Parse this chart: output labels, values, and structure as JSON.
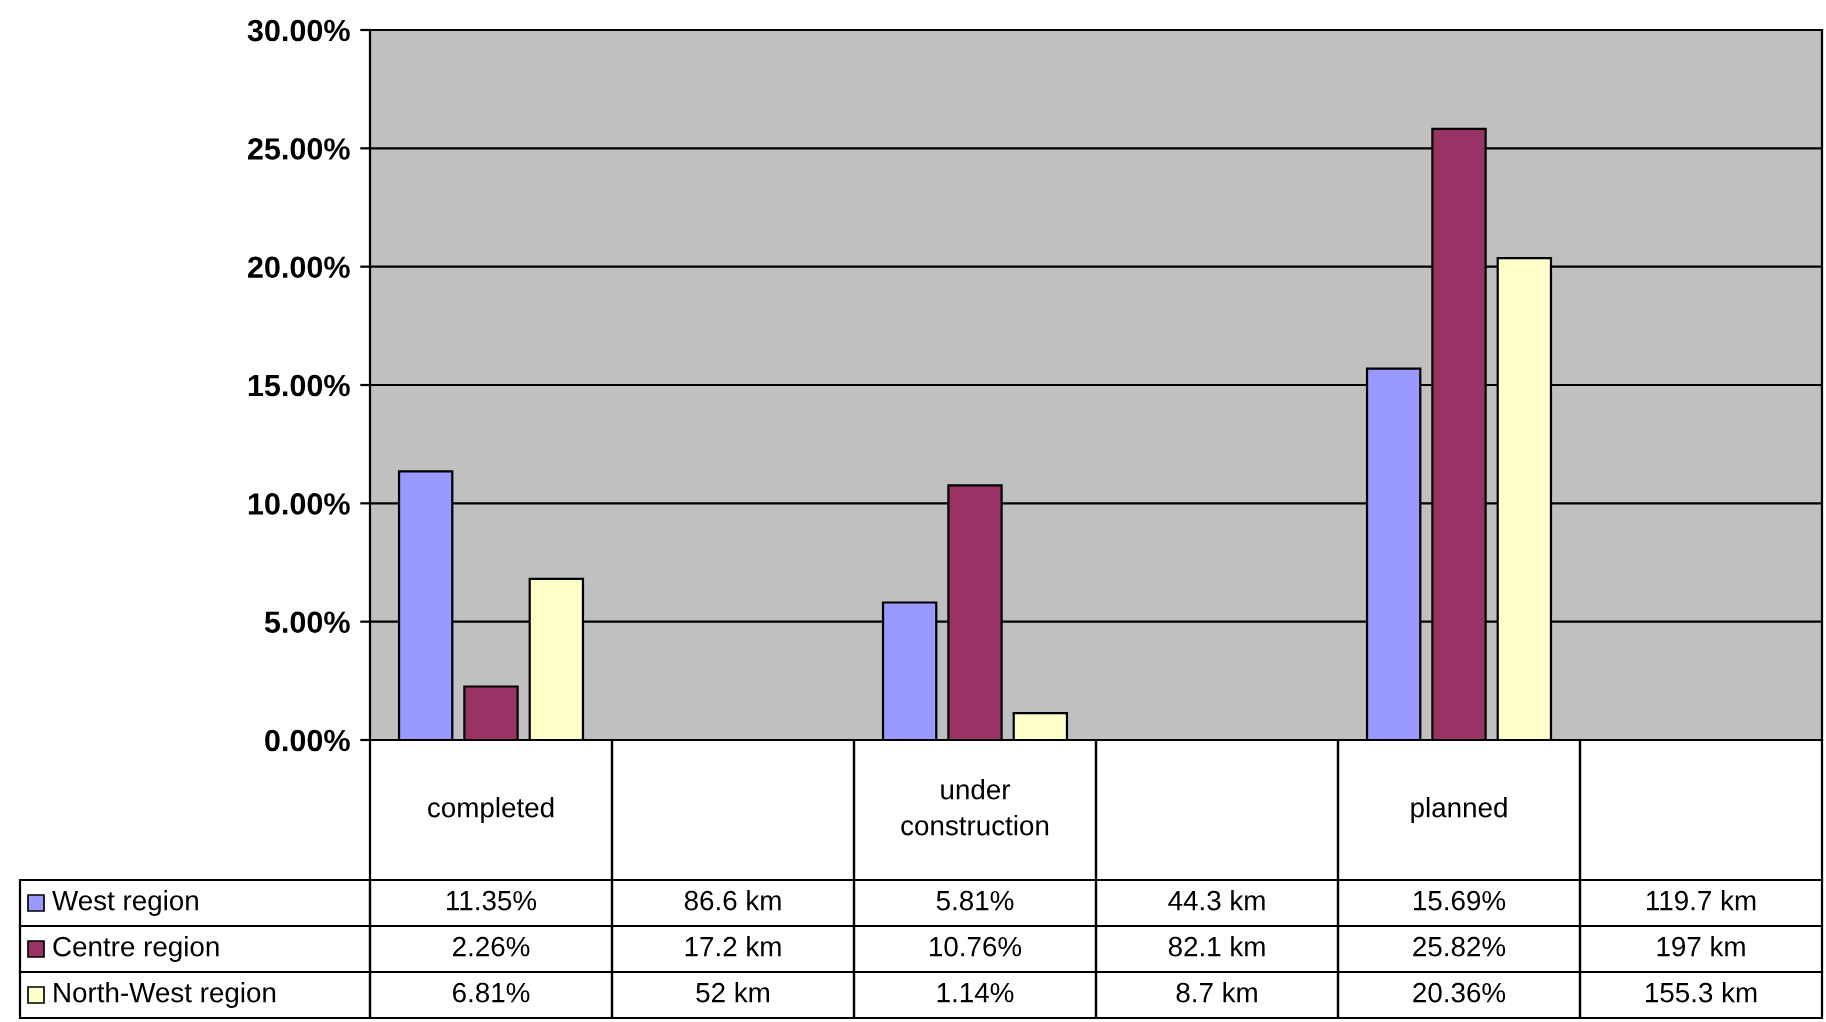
{
  "chart_data": {
    "type": "bar",
    "categories": [
      "completed",
      null,
      "under construction",
      null,
      "planned",
      null
    ],
    "series": [
      {
        "name": "West region",
        "color": "#9999ff",
        "values": [
          11.35,
          null,
          5.81,
          null,
          15.69,
          null
        ],
        "value_labels": [
          "11.35%",
          "86.6 km",
          "5.81%",
          "44.3 km",
          "15.69%",
          "119.7 km"
        ]
      },
      {
        "name": "Centre region",
        "color": "#993366",
        "values": [
          2.26,
          null,
          10.76,
          null,
          25.82,
          null
        ],
        "value_labels": [
          "2.26%",
          "17.2 km",
          "10.76%",
          "82.1 km",
          "25.82%",
          "197 km"
        ]
      },
      {
        "name": "North-West region",
        "color": "#ffffcc",
        "values": [
          6.81,
          null,
          1.14,
          null,
          20.36,
          null
        ],
        "value_labels": [
          "6.81%",
          "52 km",
          "1.14%",
          "8.7 km",
          "20.36%",
          "155.3 km"
        ]
      }
    ],
    "ylim": [
      0,
      30
    ],
    "yticks": [
      {
        "value": 0,
        "label": "0.00%"
      },
      {
        "value": 5,
        "label": "5.00%"
      },
      {
        "value": 10,
        "label": "10.00%"
      },
      {
        "value": 15,
        "label": "15.00%"
      },
      {
        "value": 20,
        "label": "20.00%"
      },
      {
        "value": 25,
        "label": "25.00%"
      },
      {
        "value": 30,
        "label": "30.00%"
      }
    ],
    "grid": "y",
    "legend": "bottom"
  }
}
